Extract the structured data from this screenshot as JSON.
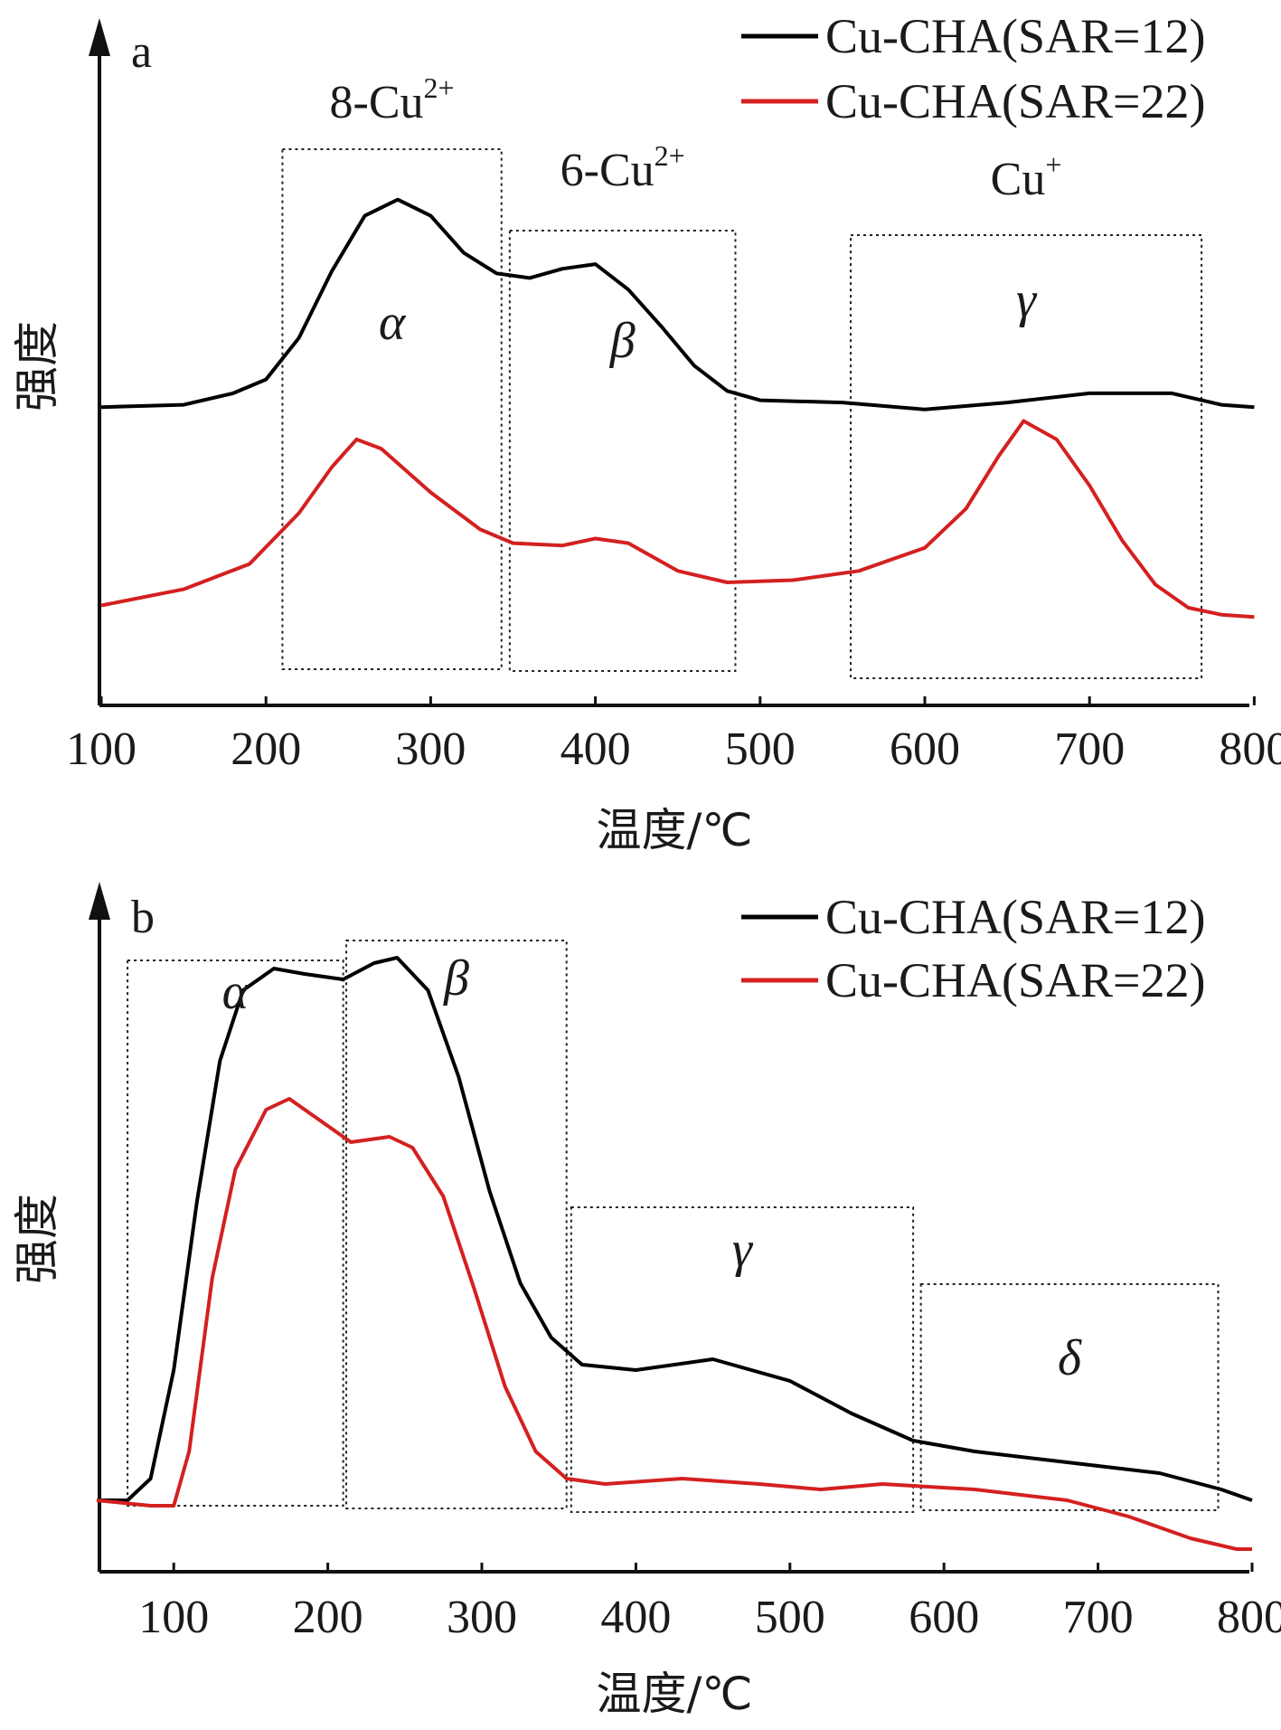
{
  "chart_data": [
    {
      "type": "line",
      "panel_label": "a",
      "xlabel": "温度/℃",
      "ylabel": "强度",
      "xlim": [
        100,
        800
      ],
      "x_ticks": [
        "100",
        "200",
        "300",
        "400",
        "500",
        "600",
        "700",
        "800"
      ],
      "y_ticks": "none",
      "legend": {
        "placement": "top-right",
        "entries": [
          "Cu-CHA(SAR=12)",
          "Cu-CHA(SAR=22)"
        ]
      },
      "series": [
        {
          "name": "Cu-CHA(SAR=12)",
          "color": "#000000",
          "points": [
            [
              100,
              0.96
            ],
            [
              150,
              0.97
            ],
            [
              180,
              1.02
            ],
            [
              200,
              1.08
            ],
            [
              220,
              1.26
            ],
            [
              240,
              1.55
            ],
            [
              260,
              1.79
            ],
            [
              280,
              1.86
            ],
            [
              300,
              1.79
            ],
            [
              320,
              1.63
            ],
            [
              340,
              1.54
            ],
            [
              360,
              1.52
            ],
            [
              380,
              1.56
            ],
            [
              400,
              1.58
            ],
            [
              420,
              1.47
            ],
            [
              440,
              1.31
            ],
            [
              460,
              1.14
            ],
            [
              480,
              1.03
            ],
            [
              500,
              0.99
            ],
            [
              550,
              0.98
            ],
            [
              600,
              0.95
            ],
            [
              650,
              0.98
            ],
            [
              700,
              1.02
            ],
            [
              750,
              1.02
            ],
            [
              780,
              0.97
            ],
            [
              800,
              0.96
            ]
          ]
        },
        {
          "name": "Cu-CHA(SAR=22)",
          "color": "#d42020",
          "points": [
            [
              100,
              0.1
            ],
            [
              150,
              0.17
            ],
            [
              190,
              0.28
            ],
            [
              220,
              0.5
            ],
            [
              240,
              0.7
            ],
            [
              255,
              0.82
            ],
            [
              270,
              0.78
            ],
            [
              300,
              0.59
            ],
            [
              330,
              0.43
            ],
            [
              350,
              0.37
            ],
            [
              380,
              0.36
            ],
            [
              400,
              0.39
            ],
            [
              420,
              0.37
            ],
            [
              450,
              0.25
            ],
            [
              480,
              0.2
            ],
            [
              520,
              0.21
            ],
            [
              560,
              0.25
            ],
            [
              600,
              0.35
            ],
            [
              625,
              0.52
            ],
            [
              645,
              0.75
            ],
            [
              660,
              0.9
            ],
            [
              680,
              0.82
            ],
            [
              700,
              0.62
            ],
            [
              720,
              0.38
            ],
            [
              740,
              0.19
            ],
            [
              760,
              0.09
            ],
            [
              780,
              0.06
            ],
            [
              800,
              0.05
            ]
          ]
        }
      ],
      "regions": [
        {
          "label": "α",
          "range": [
            210,
            343
          ],
          "species": "8-Cu",
          "charge": "2+"
        },
        {
          "label": "β",
          "range": [
            348,
            485
          ],
          "species": "6-Cu",
          "charge": "2+"
        },
        {
          "label": "γ",
          "range": [
            555,
            768
          ],
          "species": "Cu",
          "charge": "+"
        }
      ]
    },
    {
      "type": "line",
      "panel_label": "b",
      "xlabel": "温度/℃",
      "ylabel": "强度",
      "xlim": [
        50,
        800
      ],
      "x_ticks": [
        "100",
        "200",
        "300",
        "400",
        "500",
        "600",
        "700",
        "800"
      ],
      "y_ticks": "none",
      "legend": {
        "placement": "top-right",
        "entries": [
          "Cu-CHA(SAR=12)",
          "Cu-CHA(SAR=22)"
        ]
      },
      "series": [
        {
          "name": "Cu-CHA(SAR=12)",
          "color": "#000000",
          "points": [
            [
              50,
              0.01
            ],
            [
              70,
              0.01
            ],
            [
              85,
              0.05
            ],
            [
              100,
              0.25
            ],
            [
              115,
              0.56
            ],
            [
              130,
              0.82
            ],
            [
              145,
              0.95
            ],
            [
              165,
              0.99
            ],
            [
              185,
              0.98
            ],
            [
              210,
              0.97
            ],
            [
              230,
              1.0
            ],
            [
              245,
              1.01
            ],
            [
              265,
              0.95
            ],
            [
              285,
              0.79
            ],
            [
              305,
              0.58
            ],
            [
              325,
              0.41
            ],
            [
              345,
              0.31
            ],
            [
              365,
              0.26
            ],
            [
              400,
              0.25
            ],
            [
              450,
              0.27
            ],
            [
              500,
              0.23
            ],
            [
              540,
              0.17
            ],
            [
              580,
              0.12
            ],
            [
              620,
              0.1
            ],
            [
              680,
              0.08
            ],
            [
              740,
              0.06
            ],
            [
              780,
              0.03
            ],
            [
              800,
              0.01
            ]
          ]
        },
        {
          "name": "Cu-CHA(SAR=22)",
          "color": "#d42020",
          "points": [
            [
              50,
              0.01
            ],
            [
              85,
              0.0
            ],
            [
              100,
              0.0
            ],
            [
              110,
              0.1
            ],
            [
              125,
              0.42
            ],
            [
              140,
              0.62
            ],
            [
              160,
              0.73
            ],
            [
              175,
              0.75
            ],
            [
              195,
              0.71
            ],
            [
              215,
              0.67
            ],
            [
              240,
              0.68
            ],
            [
              255,
              0.66
            ],
            [
              275,
              0.57
            ],
            [
              295,
              0.4
            ],
            [
              315,
              0.22
            ],
            [
              335,
              0.1
            ],
            [
              355,
              0.05
            ],
            [
              380,
              0.04
            ],
            [
              430,
              0.05
            ],
            [
              480,
              0.04
            ],
            [
              520,
              0.03
            ],
            [
              560,
              0.04
            ],
            [
              620,
              0.03
            ],
            [
              680,
              0.01
            ],
            [
              720,
              -0.02
            ],
            [
              760,
              -0.06
            ],
            [
              790,
              -0.08
            ],
            [
              800,
              -0.08
            ]
          ]
        }
      ],
      "regions": [
        {
          "label": "α",
          "range": [
            70,
            210
          ]
        },
        {
          "label": "β",
          "range": [
            212,
            355
          ]
        },
        {
          "label": "γ",
          "range": [
            358,
            580
          ]
        },
        {
          "label": "δ",
          "range": [
            585,
            778
          ]
        }
      ]
    }
  ]
}
